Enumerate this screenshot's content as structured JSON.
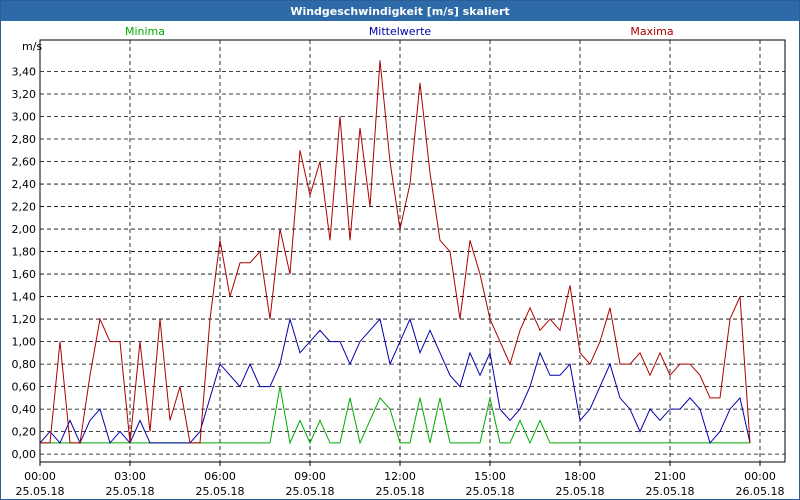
{
  "chart_data": {
    "type": "line",
    "title": "Windgeschwindigkeit [m/s] skaliert",
    "ylabel": "m/s",
    "grid": true,
    "x": [
      0,
      20,
      40,
      60,
      80,
      100,
      120,
      140,
      160,
      180,
      200,
      220,
      240,
      260,
      280,
      300,
      320,
      340,
      360,
      380,
      400,
      420,
      440,
      460,
      480,
      500,
      520,
      540,
      560,
      580,
      600,
      620,
      640,
      660,
      680,
      700,
      720,
      740,
      760,
      780,
      800,
      820,
      840,
      860,
      880,
      900,
      920,
      940,
      960,
      980,
      1000,
      1020,
      1040,
      1060,
      1080,
      1100,
      1120,
      1140,
      1160,
      1180,
      1200,
      1220,
      1240,
      1260,
      1280,
      1300,
      1320,
      1340,
      1360,
      1380,
      1400,
      1420
    ],
    "xlim": [
      0,
      1490
    ],
    "xticks": [
      {
        "value": 0,
        "label": "00:00 25.05.18"
      },
      {
        "value": 180,
        "label": "03:00 25.05.18"
      },
      {
        "value": 360,
        "label": "06:00 25.05.18"
      },
      {
        "value": 540,
        "label": "09:00 25.05.18"
      },
      {
        "value": 720,
        "label": "12:00 25.05.18"
      },
      {
        "value": 900,
        "label": "15:00 25.05.18"
      },
      {
        "value": 1080,
        "label": "18:00 25.05.18"
      },
      {
        "value": 1260,
        "label": "21:00 25.05.18"
      },
      {
        "value": 1440,
        "label": "00:00 26.05.18"
      }
    ],
    "ylim": [
      -0.07,
      3.68
    ],
    "yticks": [
      {
        "value": 0,
        "label": "0,00"
      },
      {
        "value": 0.2,
        "label": "0,20"
      },
      {
        "value": 0.4,
        "label": "0,40"
      },
      {
        "value": 0.6,
        "label": "0,60"
      },
      {
        "value": 0.8,
        "label": "0,80"
      },
      {
        "value": 1.0,
        "label": "1,00"
      },
      {
        "value": 1.2,
        "label": "1,20"
      },
      {
        "value": 1.4,
        "label": "1,40"
      },
      {
        "value": 1.6,
        "label": "1,60"
      },
      {
        "value": 1.8,
        "label": "1,80"
      },
      {
        "value": 2.0,
        "label": "2,00"
      },
      {
        "value": 2.2,
        "label": "2,20"
      },
      {
        "value": 2.4,
        "label": "2,40"
      },
      {
        "value": 2.6,
        "label": "2,60"
      },
      {
        "value": 2.8,
        "label": "2,80"
      },
      {
        "value": 3.0,
        "label": "3,00"
      },
      {
        "value": 3.2,
        "label": "3,20"
      },
      {
        "value": 3.4,
        "label": "3,40"
      }
    ],
    "series": [
      {
        "name": "Minima",
        "color": "#00aa00",
        "values": [
          0.1,
          0.1,
          0.1,
          0.1,
          0.1,
          0.1,
          0.1,
          0.1,
          0.1,
          0.1,
          0.1,
          0.1,
          0.1,
          0.1,
          0.1,
          0.1,
          0.1,
          0.1,
          0.1,
          0.1,
          0.1,
          0.1,
          0.1,
          0.1,
          0.6,
          0.1,
          0.3,
          0.1,
          0.3,
          0.1,
          0.1,
          0.5,
          0.1,
          0.3,
          0.5,
          0.4,
          0.1,
          0.1,
          0.5,
          0.1,
          0.5,
          0.1,
          0.1,
          0.1,
          0.1,
          0.5,
          0.1,
          0.1,
          0.3,
          0.1,
          0.3,
          0.1,
          0.1,
          0.1,
          0.1,
          0.1,
          0.1,
          0.1,
          0.1,
          0.1,
          0.1,
          0.1,
          0.1,
          0.1,
          0.1,
          0.1,
          0.1,
          0.1,
          0.1,
          0.1,
          0.1,
          0.1
        ]
      },
      {
        "name": "Mittelwerte",
        "color": "#0000aa",
        "values": [
          0.1,
          0.2,
          0.1,
          0.3,
          0.1,
          0.3,
          0.4,
          0.1,
          0.2,
          0.1,
          0.3,
          0.1,
          0.1,
          0.1,
          0.1,
          0.1,
          0.2,
          0.5,
          0.8,
          0.7,
          0.6,
          0.8,
          0.6,
          0.6,
          0.8,
          1.2,
          0.9,
          1.0,
          1.1,
          1.0,
          1.0,
          0.8,
          1.0,
          1.1,
          1.2,
          0.8,
          1.0,
          1.2,
          0.9,
          1.1,
          0.9,
          0.7,
          0.6,
          0.9,
          0.7,
          0.9,
          0.4,
          0.3,
          0.4,
          0.6,
          0.9,
          0.7,
          0.7,
          0.8,
          0.3,
          0.4,
          0.6,
          0.8,
          0.5,
          0.4,
          0.2,
          0.4,
          0.3,
          0.4,
          0.4,
          0.5,
          0.4,
          0.1,
          0.2,
          0.4,
          0.5,
          0.1
        ]
      },
      {
        "name": "Maxima",
        "color": "#aa0000",
        "values": [
          0.1,
          0.1,
          1.0,
          0.1,
          0.1,
          0.7,
          1.2,
          1.0,
          1.0,
          0.1,
          1.0,
          0.2,
          1.2,
          0.3,
          0.6,
          0.1,
          0.1,
          1.2,
          1.9,
          1.4,
          1.7,
          1.7,
          1.8,
          1.2,
          2.0,
          1.6,
          2.7,
          2.3,
          2.6,
          1.9,
          3.0,
          1.9,
          2.9,
          2.2,
          3.5,
          2.6,
          2.0,
          2.4,
          3.3,
          2.5,
          1.9,
          1.8,
          1.2,
          1.9,
          1.6,
          1.2,
          1.0,
          0.8,
          1.1,
          1.3,
          1.1,
          1.2,
          1.1,
          1.5,
          0.9,
          0.8,
          1.0,
          1.3,
          0.8,
          0.8,
          0.9,
          0.7,
          0.9,
          0.7,
          0.8,
          0.8,
          0.7,
          0.5,
          0.5,
          1.2,
          1.4,
          0.1
        ]
      }
    ]
  }
}
